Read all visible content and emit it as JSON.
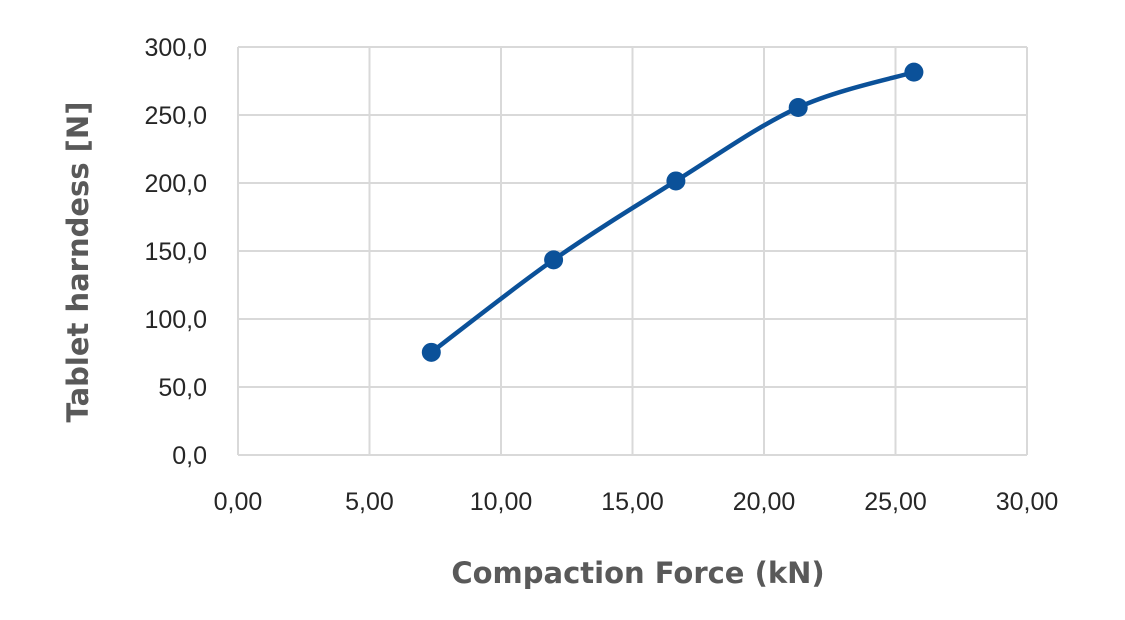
{
  "chart_data": {
    "type": "line",
    "title": "",
    "xlabel": "Compaction Force (kN)",
    "ylabel": "Tablet harndess [N]",
    "xlim": [
      0,
      30
    ],
    "ylim": [
      0,
      300
    ],
    "x_ticks": [
      "0,00",
      "5,00",
      "10,00",
      "15,00",
      "20,00",
      "25,00",
      "30,00"
    ],
    "y_ticks": [
      "0,0",
      "50,0",
      "100,0",
      "150,0",
      "200,0",
      "250,0",
      "300,0"
    ],
    "grid": true,
    "legend": "none",
    "smooth": true,
    "series": [
      {
        "color": "#0b5199",
        "x": [
          7.35,
          12.0,
          16.65,
          21.3,
          25.7
        ],
        "y": [
          75.5,
          143.5,
          201.5,
          255.5,
          281.5
        ]
      }
    ]
  }
}
